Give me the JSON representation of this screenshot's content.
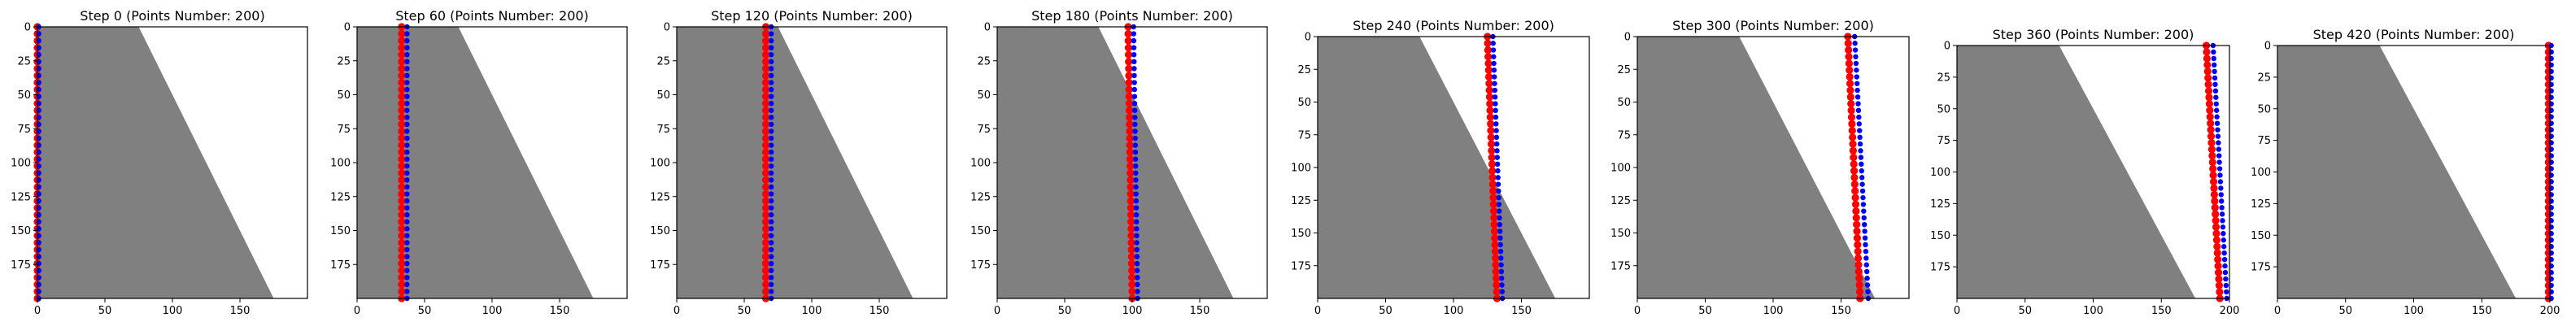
{
  "colors": {
    "region": "#808080",
    "red_points": "#ff0000",
    "blue_points": "#0000ff",
    "axes": "#000000",
    "background": "#ffffff"
  },
  "chart_data": [
    {
      "type": "scatter",
      "title": "Step 0 (Points Number: 200)",
      "region_x": [
        75,
        175
      ],
      "red_x": [
        0,
        0
      ],
      "blue_x": [
        1,
        1
      ],
      "xlim": [
        0,
        200
      ],
      "ylim": [
        200,
        0
      ],
      "xticks": [
        0,
        50,
        100,
        150
      ],
      "yticks": [
        0,
        25,
        50,
        75,
        100,
        125,
        150,
        175
      ],
      "series": [
        {
          "values": "red points"
        },
        {
          "values": "blue points"
        }
      ]
    },
    {
      "type": "scatter",
      "title": "Step 60 (Points Number: 200)",
      "region_x": [
        75,
        175
      ],
      "red_x": [
        33,
        33
      ],
      "blue_x": [
        37,
        37
      ],
      "xlim": [
        0,
        200
      ],
      "ylim": [
        200,
        0
      ],
      "xticks": [
        0,
        50,
        100,
        150
      ],
      "yticks": [
        0,
        25,
        50,
        75,
        100,
        125,
        150,
        175
      ]
    },
    {
      "type": "scatter",
      "title": "Step 120 (Points Number: 200)",
      "region_x": [
        75,
        175
      ],
      "red_x": [
        66,
        66
      ],
      "blue_x": [
        70,
        70
      ],
      "xlim": [
        0,
        200
      ],
      "ylim": [
        200,
        0
      ],
      "xticks": [
        0,
        50,
        100,
        150
      ],
      "yticks": [
        0,
        25,
        50,
        75,
        100,
        125,
        150,
        175
      ]
    },
    {
      "type": "scatter",
      "title": "Step 180 (Points Number: 200)",
      "region_x": [
        75,
        175
      ],
      "red_x": [
        97,
        100
      ],
      "blue_x": [
        101,
        104
      ],
      "xlim": [
        0,
        200
      ],
      "ylim": [
        200,
        0
      ],
      "xticks": [
        0,
        50,
        100,
        150
      ],
      "yticks": [
        0,
        25,
        50,
        75,
        100,
        125,
        150,
        175
      ]
    },
    {
      "type": "scatter",
      "title": "Step 240 (Points Number: 200)",
      "region_x": [
        75,
        175
      ],
      "red_x": [
        125,
        132
      ],
      "blue_x": [
        129,
        136
      ],
      "xlim": [
        0,
        200
      ],
      "ylim": [
        200,
        0
      ],
      "xticks": [
        0,
        50,
        100,
        150
      ],
      "yticks": [
        0,
        25,
        50,
        75,
        100,
        125,
        150,
        175
      ]
    },
    {
      "type": "scatter",
      "title": "Step 300 (Points Number: 200)",
      "region_x": [
        75,
        175
      ],
      "red_x": [
        155,
        164
      ],
      "blue_x": [
        160,
        170
      ],
      "xlim": [
        0,
        200
      ],
      "ylim": [
        200,
        0
      ],
      "xticks": [
        0,
        50,
        100,
        150
      ],
      "yticks": [
        0,
        25,
        50,
        75,
        100,
        125,
        150,
        175
      ]
    },
    {
      "type": "scatter",
      "title": "Step 360 (Points Number: 200)",
      "region_x": [
        75,
        175
      ],
      "red_x": [
        183,
        193
      ],
      "blue_x": [
        188,
        198
      ],
      "xlim": [
        0,
        200
      ],
      "ylim": [
        200,
        0
      ],
      "xticks": [
        0,
        50,
        100,
        150,
        200
      ],
      "yticks": [
        0,
        25,
        50,
        75,
        100,
        125,
        150,
        175
      ]
    },
    {
      "type": "scatter",
      "title": "Step 420 (Points Number: 200)",
      "region_x": [
        75,
        175
      ],
      "red_x": [
        199,
        199
      ],
      "blue_x": [
        201,
        201
      ],
      "xlim": [
        0,
        200
      ],
      "ylim": [
        200,
        0
      ],
      "xticks": [
        0,
        50,
        100,
        150,
        200
      ],
      "yticks": [
        0,
        25,
        50,
        75,
        100,
        125,
        150,
        175
      ]
    }
  ]
}
